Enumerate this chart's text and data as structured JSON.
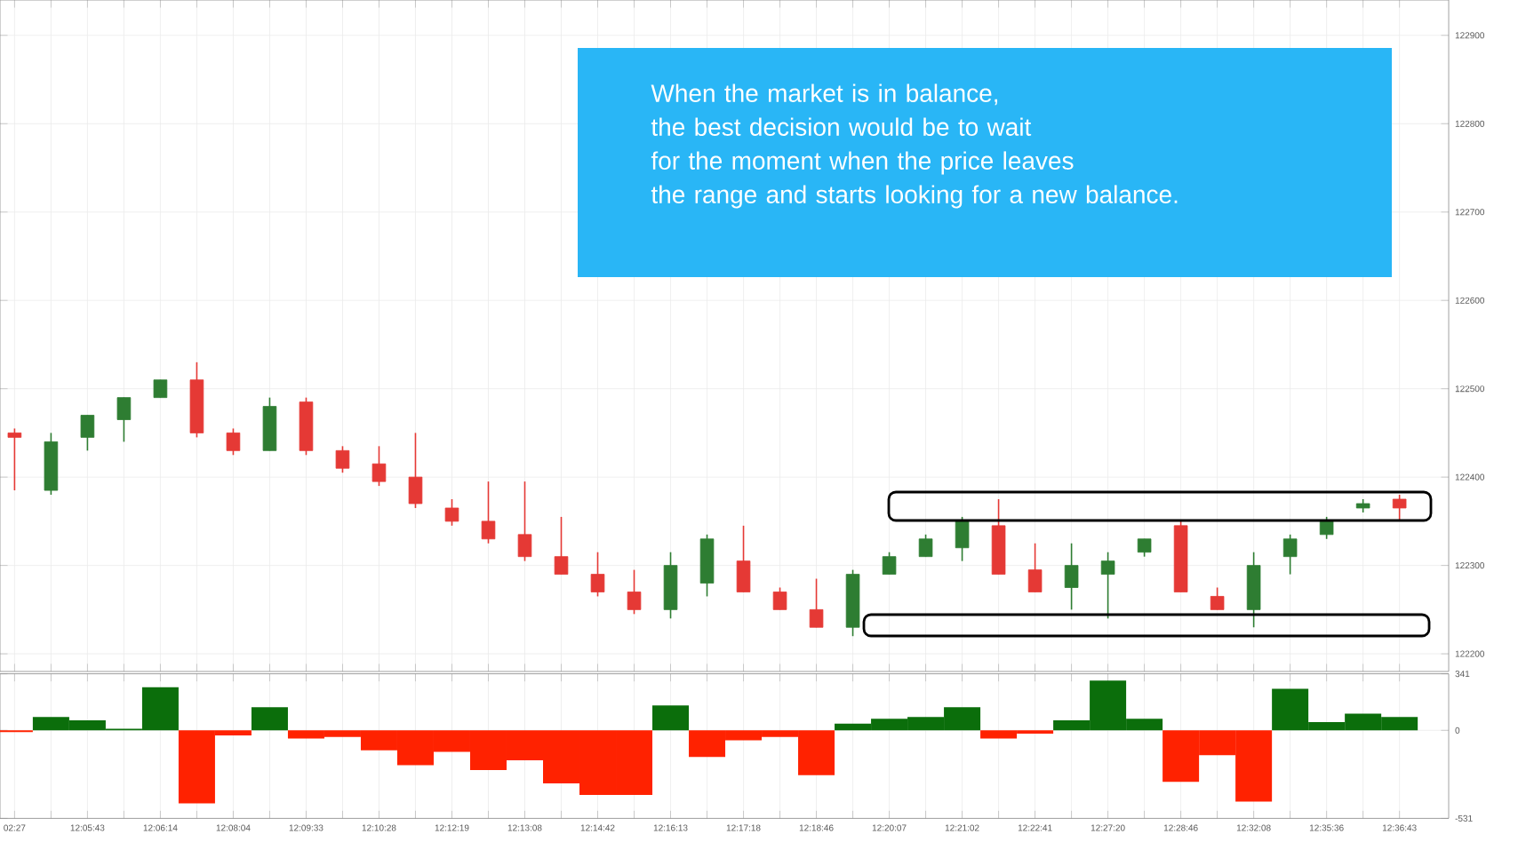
{
  "chart_data": [
    {
      "type": "candlestick",
      "categories": [
        null,
        null,
        null,
        null,
        null,
        null,
        null,
        null,
        null,
        null,
        null,
        null,
        null,
        null,
        null,
        null,
        null,
        null,
        null,
        null,
        null,
        null,
        null,
        null,
        null,
        null,
        null,
        null,
        null,
        null,
        null,
        null,
        null,
        null,
        null,
        null,
        null,
        null,
        null
      ],
      "ohlc": [
        [
          122450,
          122455,
          122385,
          122445
        ],
        [
          122385,
          122450,
          122380,
          122440
        ],
        [
          122445,
          122470,
          122430,
          122470
        ],
        [
          122465,
          122490,
          122440,
          122490
        ],
        [
          122490,
          122510,
          122490,
          122510
        ],
        [
          122510,
          122530,
          122445,
          122450
        ],
        [
          122450,
          122455,
          122425,
          122430
        ],
        [
          122430,
          122490,
          122430,
          122480
        ],
        [
          122485,
          122490,
          122425,
          122430
        ],
        [
          122430,
          122435,
          122405,
          122410
        ],
        [
          122415,
          122435,
          122390,
          122395
        ],
        [
          122400,
          122450,
          122365,
          122370
        ],
        [
          122365,
          122375,
          122345,
          122350
        ],
        [
          122350,
          122395,
          122325,
          122330
        ],
        [
          122335,
          122395,
          122305,
          122310
        ],
        [
          122310,
          122355,
          122290,
          122290
        ],
        [
          122290,
          122315,
          122265,
          122270
        ],
        [
          122270,
          122295,
          122245,
          122250
        ],
        [
          122250,
          122315,
          122240,
          122300
        ],
        [
          122280,
          122335,
          122265,
          122330
        ],
        [
          122305,
          122345,
          122270,
          122270
        ],
        [
          122270,
          122275,
          122250,
          122250
        ],
        [
          122250,
          122285,
          122230,
          122230
        ],
        [
          122230,
          122295,
          122220,
          122290
        ],
        [
          122290,
          122315,
          122290,
          122310
        ],
        [
          122310,
          122335,
          122310,
          122330
        ],
        [
          122320,
          122355,
          122305,
          122350
        ],
        [
          122345,
          122375,
          122290,
          122290
        ],
        [
          122295,
          122325,
          122270,
          122270
        ],
        [
          122275,
          122325,
          122250,
          122300
        ],
        [
          122290,
          122315,
          122240,
          122305
        ],
        [
          122315,
          122330,
          122310,
          122330
        ],
        [
          122345,
          122350,
          122270,
          122270
        ],
        [
          122265,
          122275,
          122250,
          122250
        ],
        [
          122250,
          122315,
          122230,
          122300
        ],
        [
          122310,
          122335,
          122290,
          122330
        ],
        [
          122335,
          122355,
          122330,
          122350
        ],
        [
          122365,
          122375,
          122360,
          122370
        ],
        [
          122375,
          122380,
          122350,
          122365
        ]
      ],
      "colors": [
        "#e53935",
        "#2e7d32",
        "#2e7d32",
        "#2e7d32",
        "#2e7d32",
        "#e53935",
        "#e53935",
        "#2e7d32",
        "#e53935",
        "#e53935",
        "#e53935",
        "#e53935",
        "#e53935",
        "#e53935",
        "#e53935",
        "#e53935",
        "#e53935",
        "#e53935",
        "#2e7d32",
        "#2e7d32",
        "#e53935",
        "#e53935",
        "#e53935",
        "#2e7d32",
        "#2e7d32",
        "#2e7d32",
        "#2e7d32",
        "#e53935",
        "#e53935",
        "#2e7d32",
        "#2e7d32",
        "#2e7d32",
        "#e53935",
        "#e53935",
        "#2e7d32",
        "#2e7d32",
        "#2e7d32",
        "#2e7d32",
        "#e53935"
      ],
      "ylim": [
        122180,
        122940
      ],
      "yticks": [
        122200,
        122300,
        122400,
        122500,
        122600,
        122700,
        122800,
        122900
      ],
      "grid": true,
      "tick_labels": "y",
      "annotations": [
        "When the market is in balance,",
        "the best decision would be to wait",
        "for the moment when the price leaves",
        "the range and starts looking for a new balance."
      ]
    },
    {
      "type": "bar",
      "categories": [
        "02:27",
        null,
        "12:05:43",
        null,
        "12:06:14",
        null,
        "12:08:04",
        null,
        "12:09:33",
        null,
        "12:10:28",
        null,
        "12:12:19",
        null,
        "12:13:08",
        null,
        "12:14:42",
        null,
        "12:16:13",
        null,
        "12:17:18",
        null,
        "12:18:46",
        null,
        "12:20:07",
        null,
        "12:21:02",
        null,
        "12:22:41",
        null,
        "12:27:20",
        null,
        "12:28:46",
        null,
        "12:32:08",
        null,
        "12:35:36",
        null,
        "12:36:43"
      ],
      "values": [
        -10,
        80,
        60,
        10,
        260,
        -440,
        -30,
        140,
        -50,
        -40,
        -120,
        -210,
        -130,
        -240,
        -180,
        -320,
        -390,
        -390,
        150,
        -160,
        -60,
        -40,
        -270,
        40,
        70,
        80,
        140,
        -50,
        -20,
        60,
        300,
        70,
        -310,
        -150,
        -430,
        250,
        50,
        100,
        80
      ],
      "colors": [
        "#ff2200",
        "#0b6e0b",
        "#0b6e0b",
        "#0b6e0b",
        "#0b6e0b",
        "#ff2200",
        "#ff2200",
        "#0b6e0b",
        "#ff2200",
        "#ff2200",
        "#ff2200",
        "#ff2200",
        "#ff2200",
        "#ff2200",
        "#ff2200",
        "#ff2200",
        "#ff2200",
        "#ff2200",
        "#0b6e0b",
        "#ff2200",
        "#ff2200",
        "#ff2200",
        "#ff2200",
        "#0b6e0b",
        "#0b6e0b",
        "#0b6e0b",
        "#0b6e0b",
        "#ff2200",
        "#ff2200",
        "#0b6e0b",
        "#0b6e0b",
        "#0b6e0b",
        "#ff2200",
        "#ff2200",
        "#ff2200",
        "#0b6e0b",
        "#0b6e0b",
        "#0b6e0b",
        "#0b6e0b"
      ],
      "ylim": [
        -531,
        341
      ],
      "yticks": [
        341,
        0,
        -531
      ],
      "grid": true
    }
  ]
}
